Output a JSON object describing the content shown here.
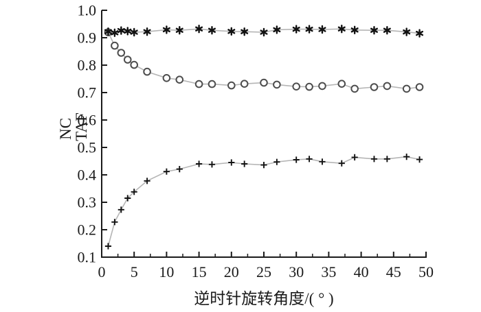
{
  "figure": {
    "background": "#ffffff",
    "axis_color": "#1a1a1a",
    "line_color": "#b5b5b5"
  },
  "chart_data": {
    "type": "line",
    "title": "",
    "xlabel": "逆时针旋转角度/( ° )",
    "ylabel_lines": [
      "NC",
      "TAF"
    ],
    "xlim": [
      0,
      50
    ],
    "ylim": [
      0.1,
      1.0
    ],
    "grid": false,
    "legend_position": "none",
    "x_tick_values": [
      0,
      5,
      10,
      15,
      20,
      25,
      30,
      35,
      40,
      45,
      50
    ],
    "x_tick_labels": [
      "0",
      "5",
      "10",
      "15",
      "20",
      "25",
      "30",
      "35",
      "40",
      "45",
      "50"
    ],
    "x_minor_step": 2.5,
    "y_tick_values": [
      0.1,
      0.2,
      0.3,
      0.4,
      0.5,
      0.6,
      0.7,
      0.8,
      0.9,
      1.0
    ],
    "y_tick_labels": [
      "0.1",
      "0.2",
      "0.3",
      "0.4",
      "0.5",
      "0.6",
      "0.7",
      "0.8",
      "0.9",
      "1.0"
    ],
    "x": [
      1,
      2,
      3,
      4,
      5,
      7,
      10,
      12,
      15,
      17,
      20,
      22,
      25,
      27,
      30,
      32,
      34,
      37,
      39,
      42,
      44,
      47,
      49
    ],
    "series": [
      {
        "name": "circle-series",
        "marker": "open-circle",
        "marker_color": "#4d4d4d",
        "line_color": "#b5b5b5",
        "values": [
          0.92,
          0.871,
          0.845,
          0.82,
          0.801,
          0.776,
          0.753,
          0.747,
          0.731,
          0.731,
          0.726,
          0.732,
          0.736,
          0.729,
          0.722,
          0.721,
          0.724,
          0.732,
          0.714,
          0.72,
          0.724,
          0.714,
          0.72
        ]
      },
      {
        "name": "asterisk-series",
        "marker": "asterisk",
        "marker_color": "#111111",
        "line_color": "#b5b5b5",
        "values": [
          0.922,
          0.918,
          0.926,
          0.924,
          0.92,
          0.922,
          0.929,
          0.927,
          0.932,
          0.927,
          0.923,
          0.922,
          0.92,
          0.929,
          0.931,
          0.931,
          0.93,
          0.932,
          0.928,
          0.927,
          0.927,
          0.921,
          0.916
        ]
      },
      {
        "name": "plus-series",
        "marker": "plus",
        "marker_color": "#111111",
        "line_color": "#b5b5b5",
        "values": [
          0.14,
          0.228,
          0.273,
          0.315,
          0.338,
          0.378,
          0.412,
          0.421,
          0.44,
          0.438,
          0.445,
          0.44,
          0.436,
          0.447,
          0.455,
          0.458,
          0.448,
          0.442,
          0.464,
          0.458,
          0.458,
          0.466,
          0.456
        ]
      }
    ]
  }
}
